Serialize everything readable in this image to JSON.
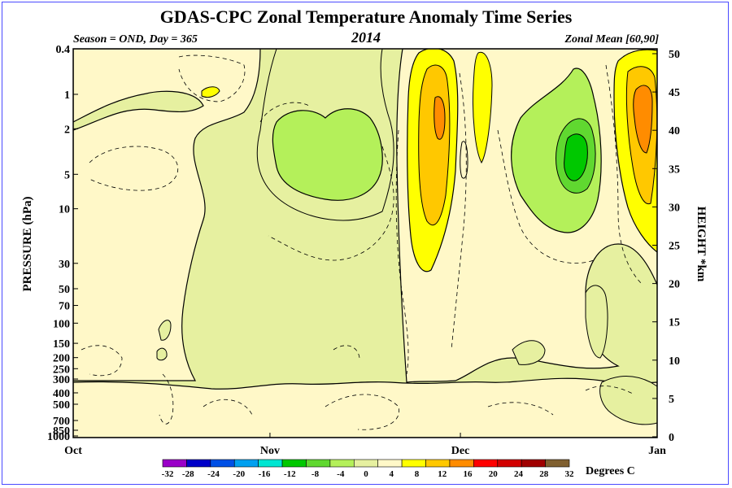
{
  "chart_data": {
    "type": "heatmap",
    "title": "GDAS-CPC Zonal Temperature Anomaly Time Series",
    "subtitle_left": "Season = OND, Day = 365",
    "subtitle_center": "2014",
    "subtitle_right": "Zonal Mean [60,90]",
    "ylabel": "PRESSURE (hPa)",
    "ylabel_right": "HEIGHT *km",
    "x_ticks": [
      "Oct",
      "Nov",
      "Dec",
      "Jan"
    ],
    "y_ticks": [
      "0.4",
      "1",
      "2",
      "5",
      "10",
      "30",
      "50",
      "70",
      "100",
      "150",
      "200",
      "250",
      "300",
      "400",
      "500",
      "700",
      "850",
      "1000"
    ],
    "y_ticks_values": [
      0.4,
      1,
      2,
      5,
      10,
      30,
      50,
      70,
      100,
      150,
      200,
      250,
      300,
      400,
      500,
      700,
      850,
      1000
    ],
    "y_right_ticks": [
      "0",
      "5",
      "10",
      "15",
      "20",
      "25",
      "30",
      "35",
      "40",
      "45",
      "50"
    ],
    "y_right_values": [
      0,
      5,
      10,
      15,
      20,
      25,
      30,
      35,
      40,
      45,
      50
    ],
    "colorbar": {
      "label": "Degrees C",
      "levels": [
        "-32",
        "-28",
        "-24",
        "-20",
        "-16",
        "-12",
        "-8",
        "-4",
        "0",
        "4",
        "8",
        "12",
        "16",
        "20",
        "24",
        "28",
        "32"
      ],
      "colors": [
        "#9a00c8",
        "#0000c8",
        "#0050e6",
        "#00a0f0",
        "#00e6d2",
        "#00c800",
        "#60d830",
        "#b4f05a",
        "#e6f0a0",
        "#fff8c8",
        "#ffff00",
        "#ffc800",
        "#ff8c00",
        "#ff0000",
        "#d20000",
        "#a00000",
        "#806030"
      ]
    },
    "regions": [
      {
        "name": "background",
        "value": -2
      },
      {
        "name": "neutral-region-lowlevels",
        "value": 1
      },
      {
        "name": "neutral-region-oct",
        "value": 1
      },
      {
        "name": "neutral-region-dec",
        "value": 1
      },
      {
        "name": "warm-region-upper-nov",
        "value": 2
      },
      {
        "name": "cold-core-nov",
        "value": -6
      },
      {
        "name": "warm-core-early-dec",
        "value": 10
      },
      {
        "name": "cold-core-mid-dec",
        "value": -10
      },
      {
        "name": "warm-core-late-dec",
        "value": 14
      }
    ]
  },
  "colors": {
    "frame": "#4a4aff",
    "axis": "#000000"
  }
}
